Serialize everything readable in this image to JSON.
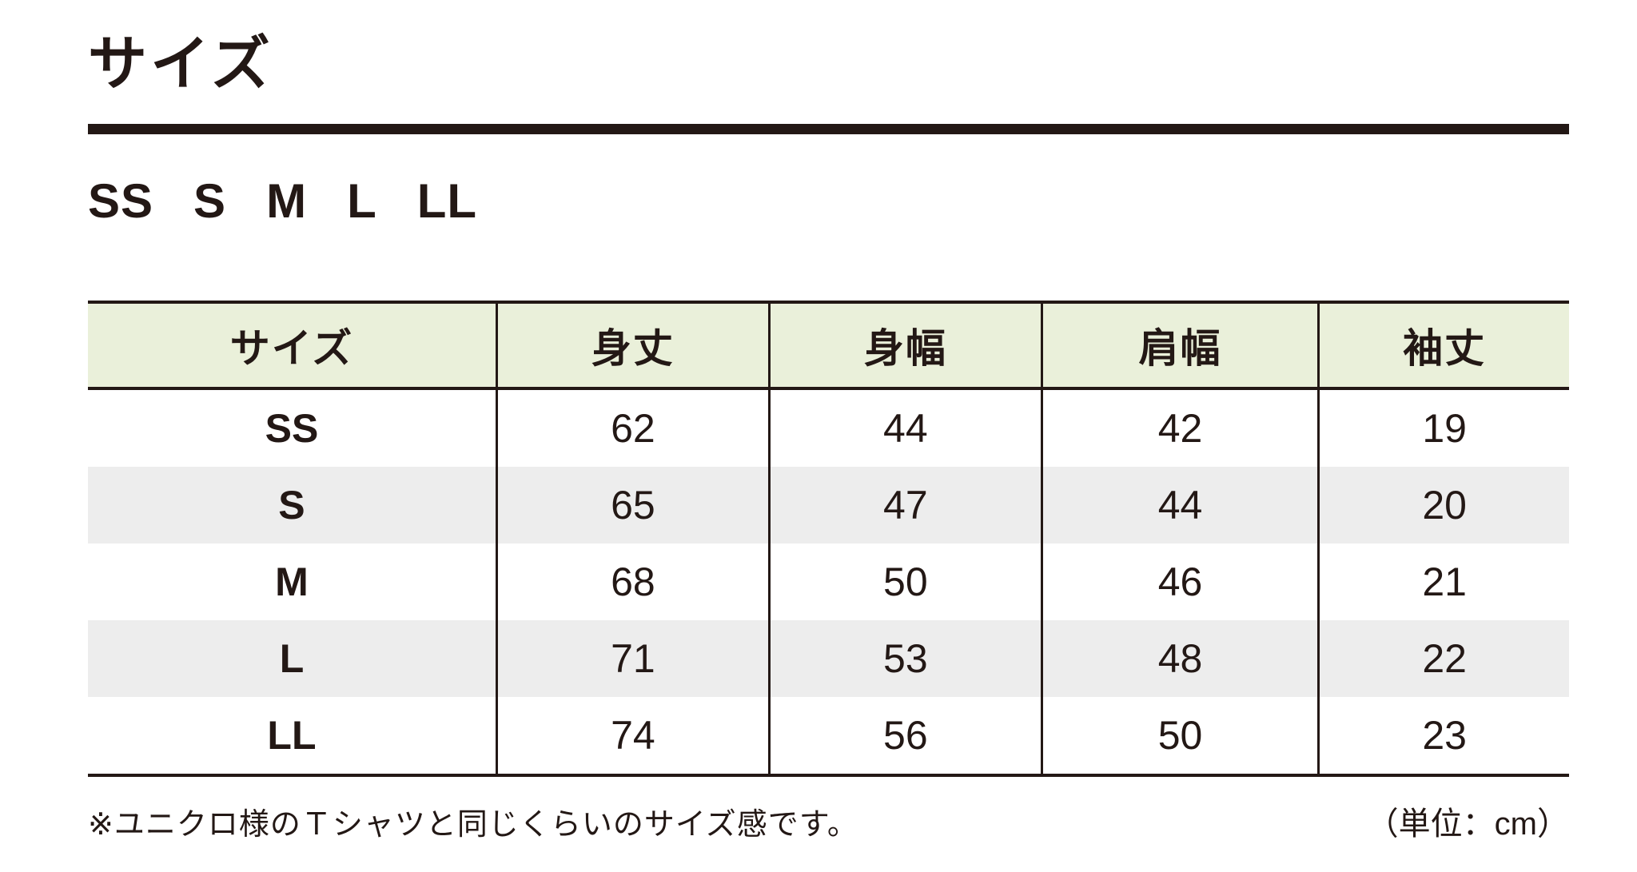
{
  "title": "サイズ",
  "size_options": [
    "SS",
    "S",
    "M",
    "L",
    "LL"
  ],
  "table": {
    "headers": [
      "サイズ",
      "身丈",
      "身幅",
      "肩幅",
      "袖丈"
    ],
    "rows": [
      {
        "size": "SS",
        "body_length": "62",
        "body_width": "44",
        "shoulder_width": "42",
        "sleeve_length": "19"
      },
      {
        "size": "S",
        "body_length": "65",
        "body_width": "47",
        "shoulder_width": "44",
        "sleeve_length": "20"
      },
      {
        "size": "M",
        "body_length": "68",
        "body_width": "50",
        "shoulder_width": "46",
        "sleeve_length": "21"
      },
      {
        "size": "L",
        "body_length": "71",
        "body_width": "53",
        "shoulder_width": "48",
        "sleeve_length": "22"
      },
      {
        "size": "LL",
        "body_length": "74",
        "body_width": "56",
        "shoulder_width": "50",
        "sleeve_length": "23"
      }
    ]
  },
  "footnote": "※ユニクロ様のＴシャツと同じくらいのサイズ感です。",
  "unit_note": "（単位：cm）",
  "colors": {
    "ink": "#231815",
    "header_bg": "#eaf0da",
    "stripe_bg": "#ededed"
  },
  "chart_data": {
    "type": "table",
    "title": "サイズ",
    "columns": [
      "サイズ",
      "身丈",
      "身幅",
      "肩幅",
      "袖丈"
    ],
    "rows": [
      [
        "SS",
        62,
        44,
        42,
        19
      ],
      [
        "S",
        65,
        47,
        44,
        20
      ],
      [
        "M",
        68,
        50,
        46,
        21
      ],
      [
        "L",
        71,
        53,
        48,
        22
      ],
      [
        "LL",
        74,
        56,
        50,
        23
      ]
    ],
    "unit": "cm",
    "note": "※ユニクロ様のＴシャツと同じくらいのサイズ感です。"
  }
}
